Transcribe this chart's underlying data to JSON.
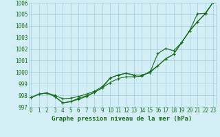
{
  "x": [
    0,
    1,
    2,
    3,
    4,
    5,
    6,
    7,
    8,
    9,
    10,
    11,
    12,
    13,
    14,
    15,
    16,
    17,
    18,
    19,
    20,
    21,
    22,
    23
  ],
  "line1": [
    997.8,
    998.1,
    998.2,
    997.9,
    997.35,
    997.45,
    997.75,
    997.95,
    998.25,
    998.65,
    999.1,
    999.45,
    999.6,
    999.6,
    999.65,
    1000.05,
    1000.55,
    1001.15,
    1001.55,
    1002.55,
    1003.55,
    1004.35,
    1005.05,
    1006.05
  ],
  "line2": [
    997.8,
    998.1,
    998.2,
    998.0,
    997.7,
    997.75,
    997.9,
    998.1,
    998.35,
    998.75,
    999.5,
    999.75,
    999.9,
    999.75,
    999.75,
    999.95,
    1001.6,
    1002.05,
    1001.85,
    1002.55,
    1003.55,
    1004.35,
    1005.05,
    1006.05
  ],
  "line3": [
    997.8,
    998.1,
    998.2,
    997.9,
    997.35,
    997.45,
    997.65,
    997.9,
    998.25,
    998.65,
    999.5,
    999.75,
    999.9,
    999.75,
    999.75,
    999.95,
    1000.55,
    1001.15,
    1001.55,
    1002.55,
    1003.55,
    1005.05,
    1005.1,
    1006.05
  ],
  "line_color": "#1a6b1a",
  "bg_color": "#d4eef5",
  "grid_color": "#9ecfdf",
  "text_color": "#1a6b1a",
  "xlabel": "Graphe pression niveau de la mer (hPa)",
  "ylim": [
    997,
    1006
  ],
  "yticks": [
    997,
    998,
    999,
    1000,
    1001,
    1002,
    1003,
    1004,
    1005,
    1006
  ],
  "xticks": [
    0,
    1,
    2,
    3,
    4,
    5,
    6,
    7,
    8,
    9,
    10,
    11,
    12,
    13,
    14,
    15,
    16,
    17,
    18,
    19,
    20,
    21,
    22,
    23
  ],
  "marker": "+",
  "marker_size": 3.5,
  "line_width": 0.8,
  "tick_fontsize": 5.5,
  "xlabel_fontsize": 6.5
}
